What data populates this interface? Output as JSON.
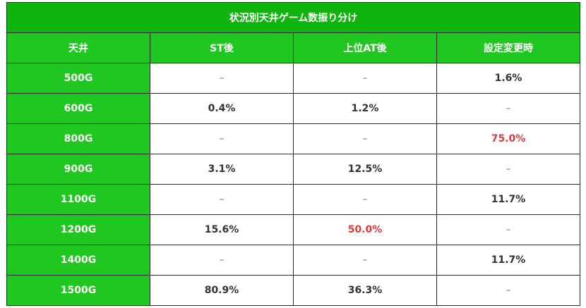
{
  "title": "状況別天井ゲーム数振り分け",
  "headers": [
    "天井",
    "ST後",
    "上位AT後",
    "設定変更時"
  ],
  "rows": [
    {
      "label": "500G",
      "st": "–",
      "upper_at": "–",
      "setting_change": "1.6%"
    },
    {
      "label": "600G",
      "st": "0.4%",
      "upper_at": "1.2%",
      "setting_change": "–"
    },
    {
      "label": "800G",
      "st": "–",
      "upper_at": "–",
      "setting_change": "75.0%"
    },
    {
      "label": "900G",
      "st": "3.1%",
      "upper_at": "12.5%",
      "setting_change": "–"
    },
    {
      "label": "1100G",
      "st": "–",
      "upper_at": "–",
      "setting_change": "11.7%"
    },
    {
      "label": "1200G",
      "st": "15.6%",
      "upper_at": "50.0%",
      "setting_change": "–"
    },
    {
      "label": "1400G",
      "st": "–",
      "upper_at": "–",
      "setting_change": "11.7%"
    },
    {
      "label": "1500G",
      "st": "80.9%",
      "upper_at": "36.3%",
      "setting_change": "–"
    }
  ],
  "colors": {
    "title_bg": "#0fb40f",
    "header_bg": "#21c721",
    "highlight_text": "#d93a3a",
    "border": "#2a2a2a"
  }
}
